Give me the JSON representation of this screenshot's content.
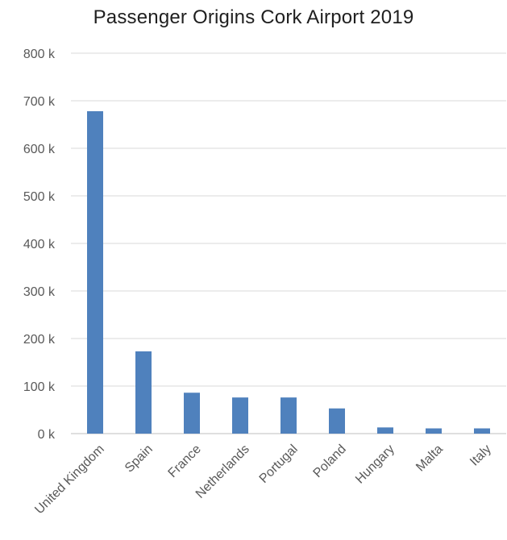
{
  "chart_data": {
    "type": "bar",
    "title": "Passenger Origins Cork Airport 2019",
    "xlabel": "",
    "ylabel": "",
    "categories": [
      "United Kingdom",
      "Spain",
      "France",
      "Netherlands",
      "Portugal",
      "Poland",
      "Hungary",
      "Malta",
      "Italy"
    ],
    "values": [
      678000,
      173000,
      86000,
      76000,
      76000,
      53000,
      13000,
      11000,
      11000
    ],
    "ylim": [
      0,
      800000
    ],
    "yticks": [
      0,
      100000,
      200000,
      300000,
      400000,
      500000,
      600000,
      700000,
      800000
    ],
    "ytick_labels": [
      "0 k",
      "100 k",
      "200 k",
      "300 k",
      "400 k",
      "500 k",
      "600 k",
      "700 k",
      "800 k"
    ],
    "grid": true,
    "legend": "none",
    "bar_color": "#4f81bd",
    "grid_color": "#d9d9d9",
    "axis_color": "#bfbfbf"
  }
}
